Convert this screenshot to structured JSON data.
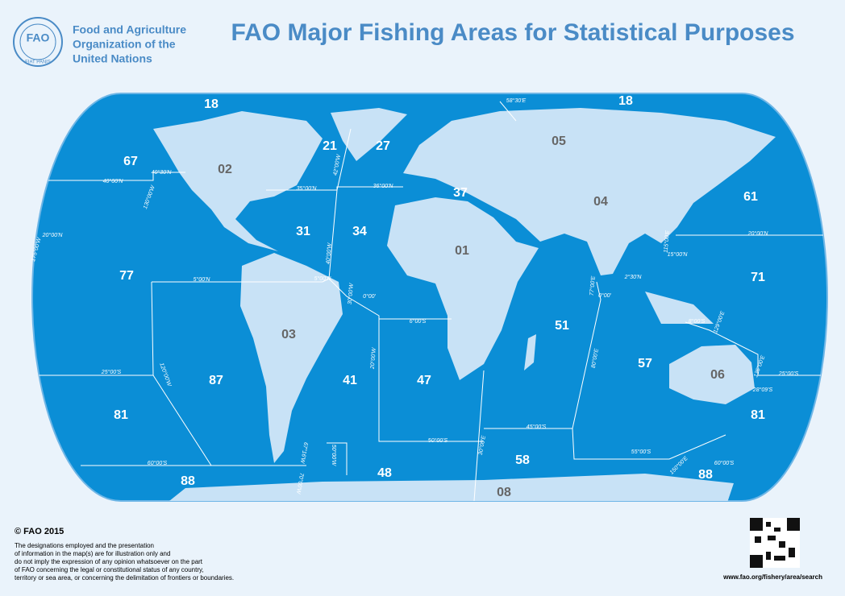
{
  "header": {
    "organization": [
      "Food and Agriculture",
      "Organization of the",
      "United Nations"
    ],
    "logo_text": "FAO",
    "logo_motto": "FIAT PANIS",
    "title": "FAO Major Fishing Areas for Statistical Purposes"
  },
  "map": {
    "areas": [
      "18",
      "18",
      "67",
      "02",
      "21",
      "27",
      "05",
      "37",
      "04",
      "61",
      "31",
      "34",
      "01",
      "77",
      "71",
      "03",
      "51",
      "57",
      "06",
      "87",
      "41",
      "47",
      "81",
      "81",
      "58",
      "48",
      "88",
      "88",
      "08"
    ],
    "coordinates": [
      "58°30'E",
      "40°30'N",
      "40°00'N",
      "130°00'W",
      "35°00'N",
      "36°00'N",
      "42°00'W",
      "20°00'N",
      "175°00'W",
      "40°00'W",
      "5°00'N",
      "5°00'N",
      "30°00'W",
      "0°00'",
      "6°00'S",
      "77°00'E",
      "0°00'",
      "2°30'N",
      "15°00'N",
      "115°00'E",
      "20°00'N",
      "8°00'S",
      "129°00'E",
      "80°00'E",
      "120°00'W",
      "20°00'W",
      "25°00'S",
      "25°00'S",
      "135°00'E",
      "28°09'S",
      "45°00'S",
      "50°00'S",
      "30°00'E",
      "55°00'S",
      "67°16'W",
      "50°00'W",
      "60°00'S",
      "60°00'S",
      "150°00'E",
      "70°00'W"
    ]
  },
  "footer": {
    "copyright": "© FAO 2015",
    "disclaimer": [
      "The designations employed and the presentation",
      "of information in the map(s) are for illustration only and",
      "do not imply the expression of any opinion whatsoever on the part",
      "of FAO concerning the legal or constitutional status of any country,",
      "territory or sea area, or concerning the delimitation of frontiers or boundaries."
    ],
    "url": "www.fao.org/fishery/area/search"
  }
}
